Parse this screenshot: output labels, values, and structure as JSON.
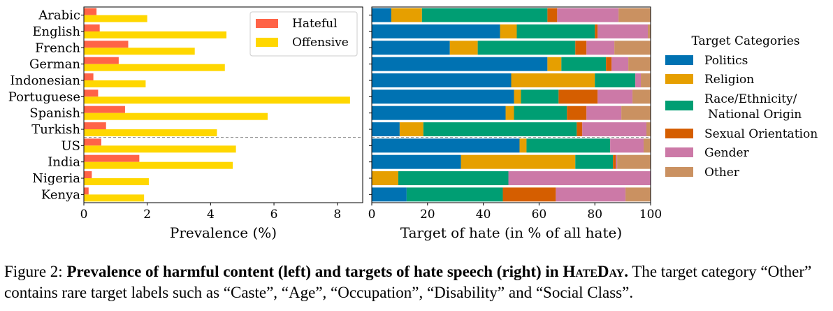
{
  "chart_data": [
    {
      "type": "bar",
      "orientation": "horizontal",
      "categories": [
        "Arabic",
        "English",
        "French",
        "German",
        "Indonesian",
        "Portuguese",
        "Spanish",
        "Turkish",
        "US",
        "India",
        "Nigeria",
        "Kenya"
      ],
      "series": [
        {
          "name": "Hateful",
          "color": "#ff6347",
          "values": [
            0.4,
            0.5,
            1.4,
            1.1,
            0.3,
            0.45,
            1.3,
            0.7,
            0.55,
            1.75,
            0.25,
            0.15
          ]
        },
        {
          "name": "Offensive",
          "color": "#ffd700",
          "values": [
            2.0,
            4.5,
            3.5,
            4.45,
            1.95,
            8.4,
            5.8,
            4.2,
            4.8,
            4.7,
            2.05,
            1.9
          ]
        }
      ],
      "xlabel": "Prevalence (%)",
      "xlim": [
        0,
        8.8
      ],
      "xticks": [
        "0",
        "2",
        "4",
        "6",
        "8"
      ],
      "separator_after": "Turkish",
      "legend_position": "top-right"
    },
    {
      "type": "bar",
      "orientation": "horizontal",
      "stacked": true,
      "categories": [
        "Arabic",
        "English",
        "French",
        "German",
        "Indonesian",
        "Portuguese",
        "Spanish",
        "Turkish",
        "US",
        "India",
        "Nigeria",
        "Kenya"
      ],
      "series": [
        {
          "name": "Politics",
          "color": "#0072b2",
          "values": [
            7,
            46,
            28,
            63,
            50,
            51,
            48,
            10,
            53,
            32,
            0,
            12.5
          ]
        },
        {
          "name": "Religion",
          "color": "#e69f00",
          "values": [
            11,
            6,
            10,
            5,
            30,
            2.5,
            3,
            8.5,
            2.5,
            41,
            9.5,
            0
          ]
        },
        {
          "name": "Race/Ethnicity/\nNational Origin",
          "color": "#009e73",
          "values": [
            45,
            28,
            35,
            16,
            14.5,
            13.5,
            19,
            55,
            30,
            13.5,
            39.5,
            34.5
          ]
        },
        {
          "name": "Sexual Orientation",
          "color": "#d55e00",
          "values": [
            3.5,
            1,
            4,
            2,
            0,
            14,
            7,
            2,
            0,
            1,
            0,
            19
          ]
        },
        {
          "name": "Gender",
          "color": "#cc79a7",
          "values": [
            22,
            18,
            10,
            6,
            2,
            12.5,
            12.5,
            23,
            12,
            0.5,
            51,
            25
          ]
        },
        {
          "name": "Other",
          "color": "#ca9161",
          "values": [
            11.5,
            1,
            13,
            8,
            3.5,
            6.5,
            10.5,
            1.5,
            2.5,
            12,
            0,
            9
          ]
        }
      ],
      "xlabel": "Target of hate (in % of all hate)",
      "xlim": [
        0,
        100
      ],
      "xticks": [
        "0",
        "20",
        "40",
        "60",
        "80",
        "100"
      ],
      "separator_after": "Turkish",
      "legend_title": "Target Categories",
      "legend_position": "right"
    }
  ],
  "caption": {
    "prefix": "Figure 2: ",
    "bold": "Prevalence of harmful content (left) and targets of hate speech (right) in ",
    "smallcaps": "HateDay",
    "bold_end": ".",
    "rest": " The target category “Other” contains rare target labels such as “Caste”, “Age”, “Occupation”, “Disability” and “Social Class”."
  }
}
